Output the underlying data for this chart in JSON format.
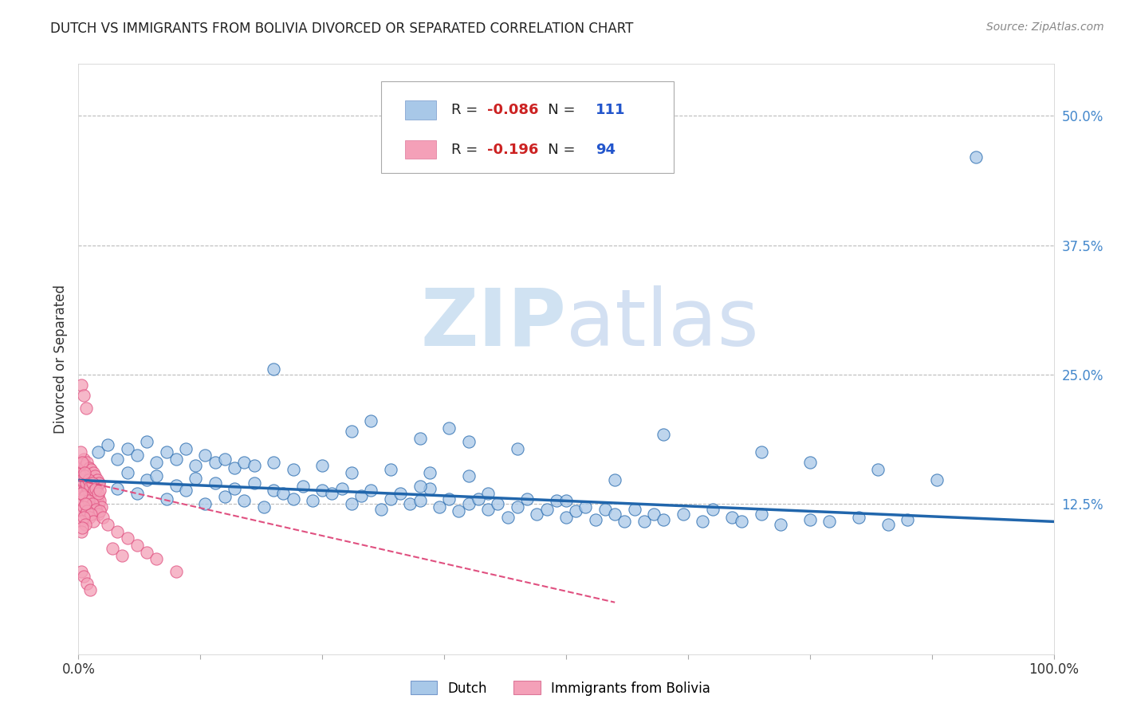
{
  "title": "DUTCH VS IMMIGRANTS FROM BOLIVIA DIVORCED OR SEPARATED CORRELATION CHART",
  "source": "Source: ZipAtlas.com",
  "ylabel": "Divorced or Separated",
  "watermark_zip": "ZIP",
  "watermark_atlas": "atlas",
  "xlim": [
    0.0,
    1.0
  ],
  "ylim": [
    -0.02,
    0.55
  ],
  "xticks": [
    0.0,
    0.125,
    0.25,
    0.375,
    0.5,
    0.625,
    0.75,
    0.875,
    1.0
  ],
  "xticklabels": [
    "0.0%",
    "",
    "",
    "",
    "",
    "",
    "",
    "",
    "100.0%"
  ],
  "ytick_positions": [
    0.125,
    0.25,
    0.375,
    0.5
  ],
  "yticklabels_right": [
    "12.5%",
    "25.0%",
    "37.5%",
    "50.0%"
  ],
  "blue_R": -0.086,
  "blue_N": 111,
  "pink_R": -0.196,
  "pink_N": 94,
  "blue_color": "#a8c8e8",
  "pink_color": "#f4a0b8",
  "blue_line_color": "#2166ac",
  "pink_line_color": "#e05080",
  "grid_color": "#bbbbbb",
  "background_color": "#ffffff",
  "legend_R_color": "#cc2222",
  "legend_N_color": "#2255cc",
  "legend_label_color": "#333333",
  "right_tick_color": "#4488cc",
  "blue_scatter_x": [
    0.02,
    0.04,
    0.05,
    0.06,
    0.07,
    0.08,
    0.09,
    0.1,
    0.11,
    0.12,
    0.13,
    0.14,
    0.15,
    0.16,
    0.17,
    0.18,
    0.19,
    0.2,
    0.21,
    0.22,
    0.23,
    0.24,
    0.25,
    0.26,
    0.27,
    0.28,
    0.29,
    0.3,
    0.31,
    0.32,
    0.33,
    0.34,
    0.35,
    0.36,
    0.37,
    0.38,
    0.39,
    0.4,
    0.41,
    0.42,
    0.43,
    0.44,
    0.45,
    0.46,
    0.47,
    0.48,
    0.49,
    0.5,
    0.51,
    0.52,
    0.53,
    0.54,
    0.55,
    0.56,
    0.57,
    0.58,
    0.59,
    0.6,
    0.62,
    0.64,
    0.65,
    0.67,
    0.68,
    0.7,
    0.72,
    0.75,
    0.77,
    0.8,
    0.83,
    0.85,
    0.02,
    0.03,
    0.04,
    0.05,
    0.06,
    0.07,
    0.08,
    0.09,
    0.1,
    0.11,
    0.12,
    0.13,
    0.14,
    0.15,
    0.16,
    0.17,
    0.18,
    0.2,
    0.22,
    0.25,
    0.28,
    0.32,
    0.36,
    0.4,
    0.28,
    0.35,
    0.4,
    0.45,
    0.3,
    0.38,
    0.2,
    0.55,
    0.92,
    0.6,
    0.7,
    0.75,
    0.82,
    0.88,
    0.35,
    0.42,
    0.5
  ],
  "blue_scatter_y": [
    0.145,
    0.14,
    0.155,
    0.135,
    0.148,
    0.152,
    0.13,
    0.143,
    0.138,
    0.15,
    0.125,
    0.145,
    0.132,
    0.14,
    0.128,
    0.145,
    0.122,
    0.138,
    0.135,
    0.13,
    0.142,
    0.128,
    0.138,
    0.135,
    0.14,
    0.125,
    0.133,
    0.138,
    0.12,
    0.13,
    0.135,
    0.125,
    0.128,
    0.14,
    0.122,
    0.13,
    0.118,
    0.125,
    0.13,
    0.12,
    0.125,
    0.112,
    0.122,
    0.13,
    0.115,
    0.12,
    0.128,
    0.112,
    0.118,
    0.122,
    0.11,
    0.12,
    0.115,
    0.108,
    0.12,
    0.108,
    0.115,
    0.11,
    0.115,
    0.108,
    0.12,
    0.112,
    0.108,
    0.115,
    0.105,
    0.11,
    0.108,
    0.112,
    0.105,
    0.11,
    0.175,
    0.182,
    0.168,
    0.178,
    0.172,
    0.185,
    0.165,
    0.175,
    0.168,
    0.178,
    0.162,
    0.172,
    0.165,
    0.168,
    0.16,
    0.165,
    0.162,
    0.165,
    0.158,
    0.162,
    0.155,
    0.158,
    0.155,
    0.152,
    0.195,
    0.188,
    0.185,
    0.178,
    0.205,
    0.198,
    0.255,
    0.148,
    0.46,
    0.192,
    0.175,
    0.165,
    0.158,
    0.148,
    0.142,
    0.135,
    0.128
  ],
  "pink_scatter_x": [
    0.003,
    0.005,
    0.006,
    0.007,
    0.008,
    0.009,
    0.01,
    0.011,
    0.012,
    0.013,
    0.014,
    0.015,
    0.016,
    0.017,
    0.018,
    0.019,
    0.02,
    0.021,
    0.022,
    0.023,
    0.003,
    0.005,
    0.007,
    0.009,
    0.011,
    0.013,
    0.015,
    0.017,
    0.019,
    0.021,
    0.003,
    0.005,
    0.007,
    0.009,
    0.011,
    0.013,
    0.015,
    0.017,
    0.019,
    0.021,
    0.004,
    0.006,
    0.008,
    0.01,
    0.012,
    0.014,
    0.016,
    0.018,
    0.02,
    0.022,
    0.004,
    0.006,
    0.008,
    0.01,
    0.012,
    0.014,
    0.016,
    0.018,
    0.02,
    0.022,
    0.003,
    0.005,
    0.007,
    0.009,
    0.011,
    0.013,
    0.015,
    0.003,
    0.005,
    0.007,
    0.003,
    0.004,
    0.025,
    0.03,
    0.04,
    0.05,
    0.06,
    0.07,
    0.08,
    0.1,
    0.035,
    0.045,
    0.003,
    0.005,
    0.008,
    0.002,
    0.004,
    0.006,
    0.003,
    0.007,
    0.003,
    0.005,
    0.009,
    0.012
  ],
  "pink_scatter_y": [
    0.14,
    0.145,
    0.138,
    0.148,
    0.135,
    0.142,
    0.138,
    0.145,
    0.132,
    0.14,
    0.135,
    0.13,
    0.138,
    0.128,
    0.135,
    0.125,
    0.132,
    0.125,
    0.128,
    0.122,
    0.155,
    0.158,
    0.152,
    0.155,
    0.148,
    0.152,
    0.145,
    0.148,
    0.142,
    0.145,
    0.165,
    0.168,
    0.162,
    0.165,
    0.16,
    0.158,
    0.155,
    0.152,
    0.148,
    0.145,
    0.148,
    0.152,
    0.145,
    0.148,
    0.142,
    0.145,
    0.138,
    0.14,
    0.135,
    0.138,
    0.128,
    0.132,
    0.125,
    0.128,
    0.122,
    0.125,
    0.118,
    0.12,
    0.115,
    0.118,
    0.118,
    0.122,
    0.115,
    0.118,
    0.112,
    0.115,
    0.108,
    0.108,
    0.112,
    0.105,
    0.098,
    0.102,
    0.112,
    0.105,
    0.098,
    0.092,
    0.085,
    0.078,
    0.072,
    0.06,
    0.082,
    0.075,
    0.24,
    0.23,
    0.218,
    0.175,
    0.165,
    0.155,
    0.135,
    0.125,
    0.06,
    0.055,
    0.048,
    0.042
  ],
  "blue_trend_x": [
    0.0,
    1.0
  ],
  "blue_trend_y": [
    0.148,
    0.108
  ],
  "pink_trend_x": [
    0.0,
    0.55
  ],
  "pink_trend_y": [
    0.148,
    0.03
  ]
}
